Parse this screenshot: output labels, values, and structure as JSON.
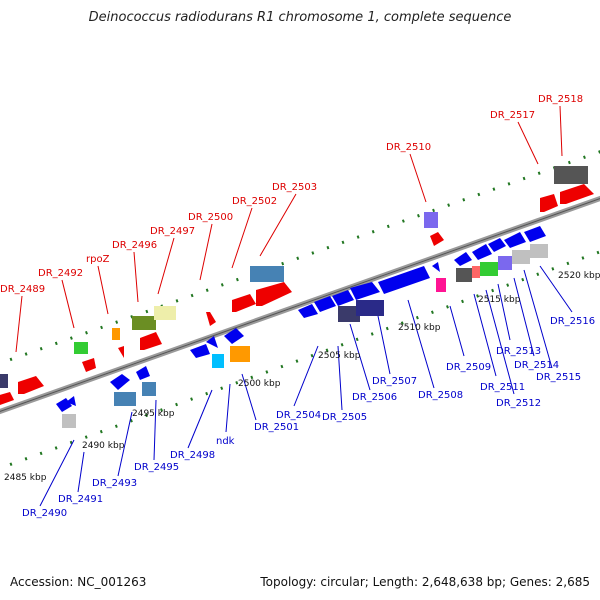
{
  "title": "Deinococcus radiodurans R1 chromosome 1, complete sequence",
  "footer": {
    "accession": "Accession: NC_001263",
    "summary": "Topology: circular; Length: 2,648,638 bp; Genes: 2,685"
  },
  "colors": {
    "top_label": "#dd0000",
    "bottom_label": "#0000cc",
    "backbone": "#9a9a9a",
    "ticks": "#227722"
  },
  "ruler": [
    {
      "kbp": 2485,
      "label": "2485 kbp"
    },
    {
      "kbp": 2490,
      "label": "2490 kbp"
    },
    {
      "kbp": 2495,
      "label": "2495 kbp"
    },
    {
      "kbp": 2500,
      "label": "2500 kbp"
    },
    {
      "kbp": 2505,
      "label": "2505 kbp"
    },
    {
      "kbp": 2510,
      "label": "2510 kbp"
    },
    {
      "kbp": 2515,
      "label": "2515 kbp"
    },
    {
      "kbp": 2520,
      "label": "2520 kbp"
    }
  ],
  "top_labels": [
    {
      "text": "DR_2489"
    },
    {
      "text": "DR_2492"
    },
    {
      "text": "rpoZ"
    },
    {
      "text": "DR_2496"
    },
    {
      "text": "DR_2497"
    },
    {
      "text": "DR_2500"
    },
    {
      "text": "DR_2502"
    },
    {
      "text": "DR_2503"
    },
    {
      "text": "DR_2510"
    },
    {
      "text": "DR_2517"
    },
    {
      "text": "DR_2518"
    }
  ],
  "bottom_labels": [
    {
      "text": "DR_2490"
    },
    {
      "text": "DR_2491"
    },
    {
      "text": "DR_2493"
    },
    {
      "text": "DR_2495"
    },
    {
      "text": "DR_2498"
    },
    {
      "text": "ndk"
    },
    {
      "text": "DR_2501"
    },
    {
      "text": "DR_2504"
    },
    {
      "text": "DR_2505"
    },
    {
      "text": "DR_2506"
    },
    {
      "text": "DR_2507"
    },
    {
      "text": "DR_2508"
    },
    {
      "text": "DR_2509"
    },
    {
      "text": "DR_2511"
    },
    {
      "text": "DR_2512"
    },
    {
      "text": "DR_2513"
    },
    {
      "text": "DR_2514"
    },
    {
      "text": "DR_2515"
    },
    {
      "text": "DR_2516"
    }
  ]
}
